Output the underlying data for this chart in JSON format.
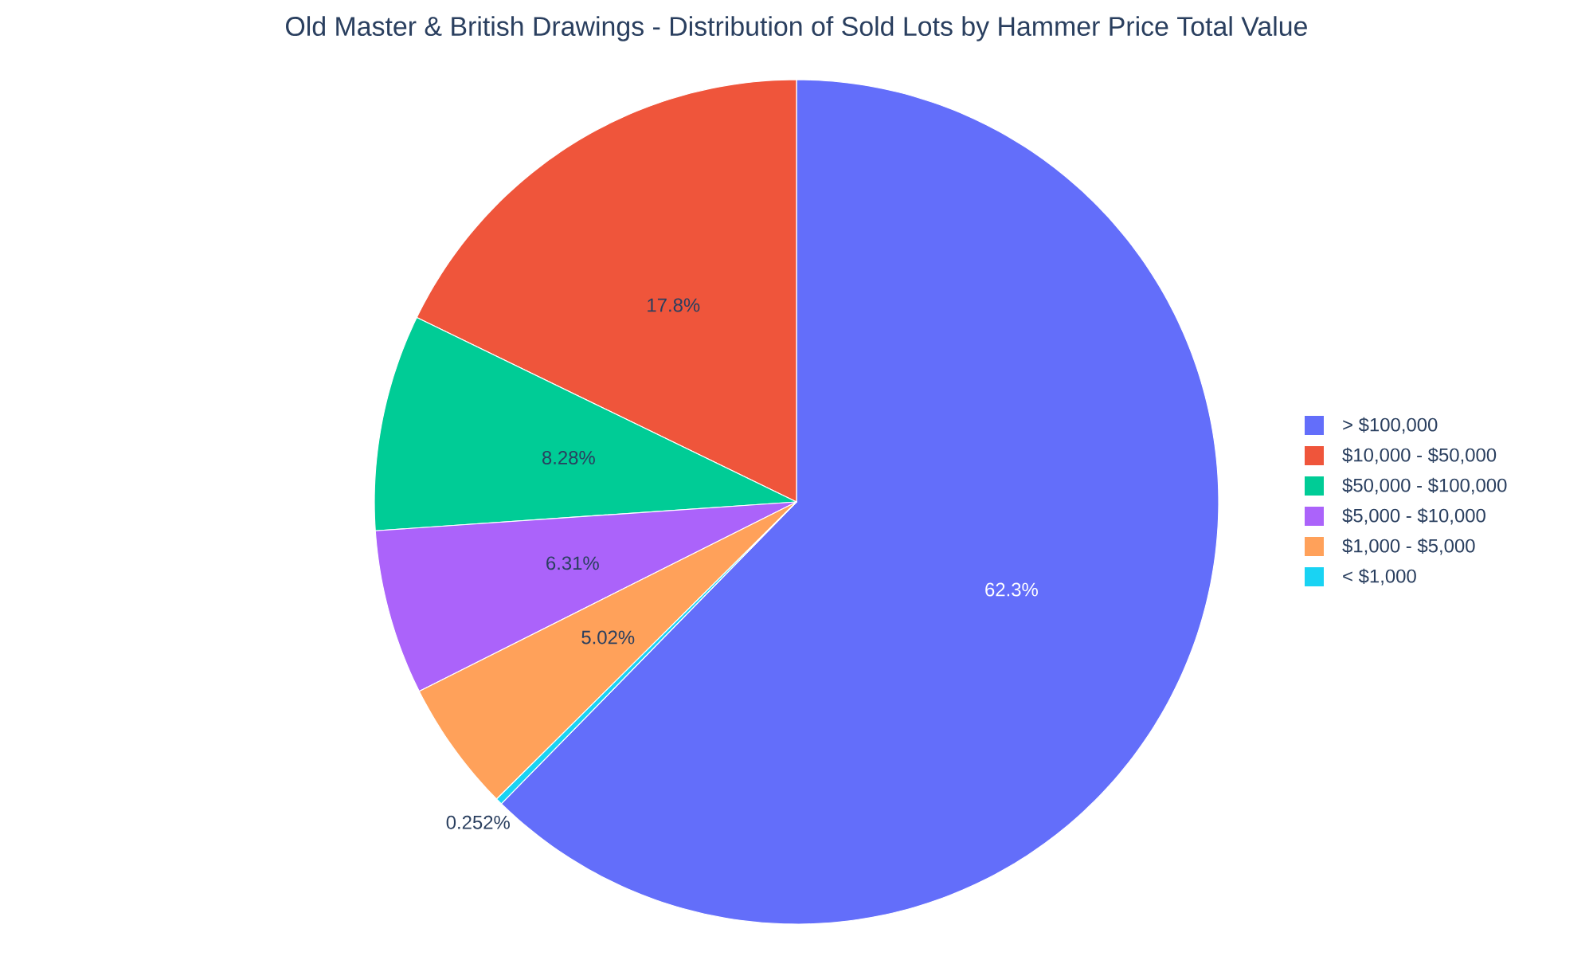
{
  "chart_data": {
    "type": "pie",
    "title": "Old Master & British Drawings - Distribution of Sold Lots by Hammer Price Total Value",
    "categories": [
      "> $100,000",
      "$10,000 - $50,000",
      "$50,000 - $100,000",
      "$5,000 - $10,000",
      "$1,000 - $5,000",
      "< $1,000"
    ],
    "values": [
      62.3,
      17.8,
      8.28,
      6.31,
      5.02,
      0.252
    ],
    "colors": [
      "#636efa",
      "#ef553b",
      "#00cc96",
      "#ab63fa",
      "#ffa15a",
      "#19d3f3"
    ],
    "value_labels": [
      "62.3%",
      "17.8%",
      "8.28%",
      "6.31%",
      "5.02%",
      "0.252%"
    ],
    "legend": "right"
  }
}
